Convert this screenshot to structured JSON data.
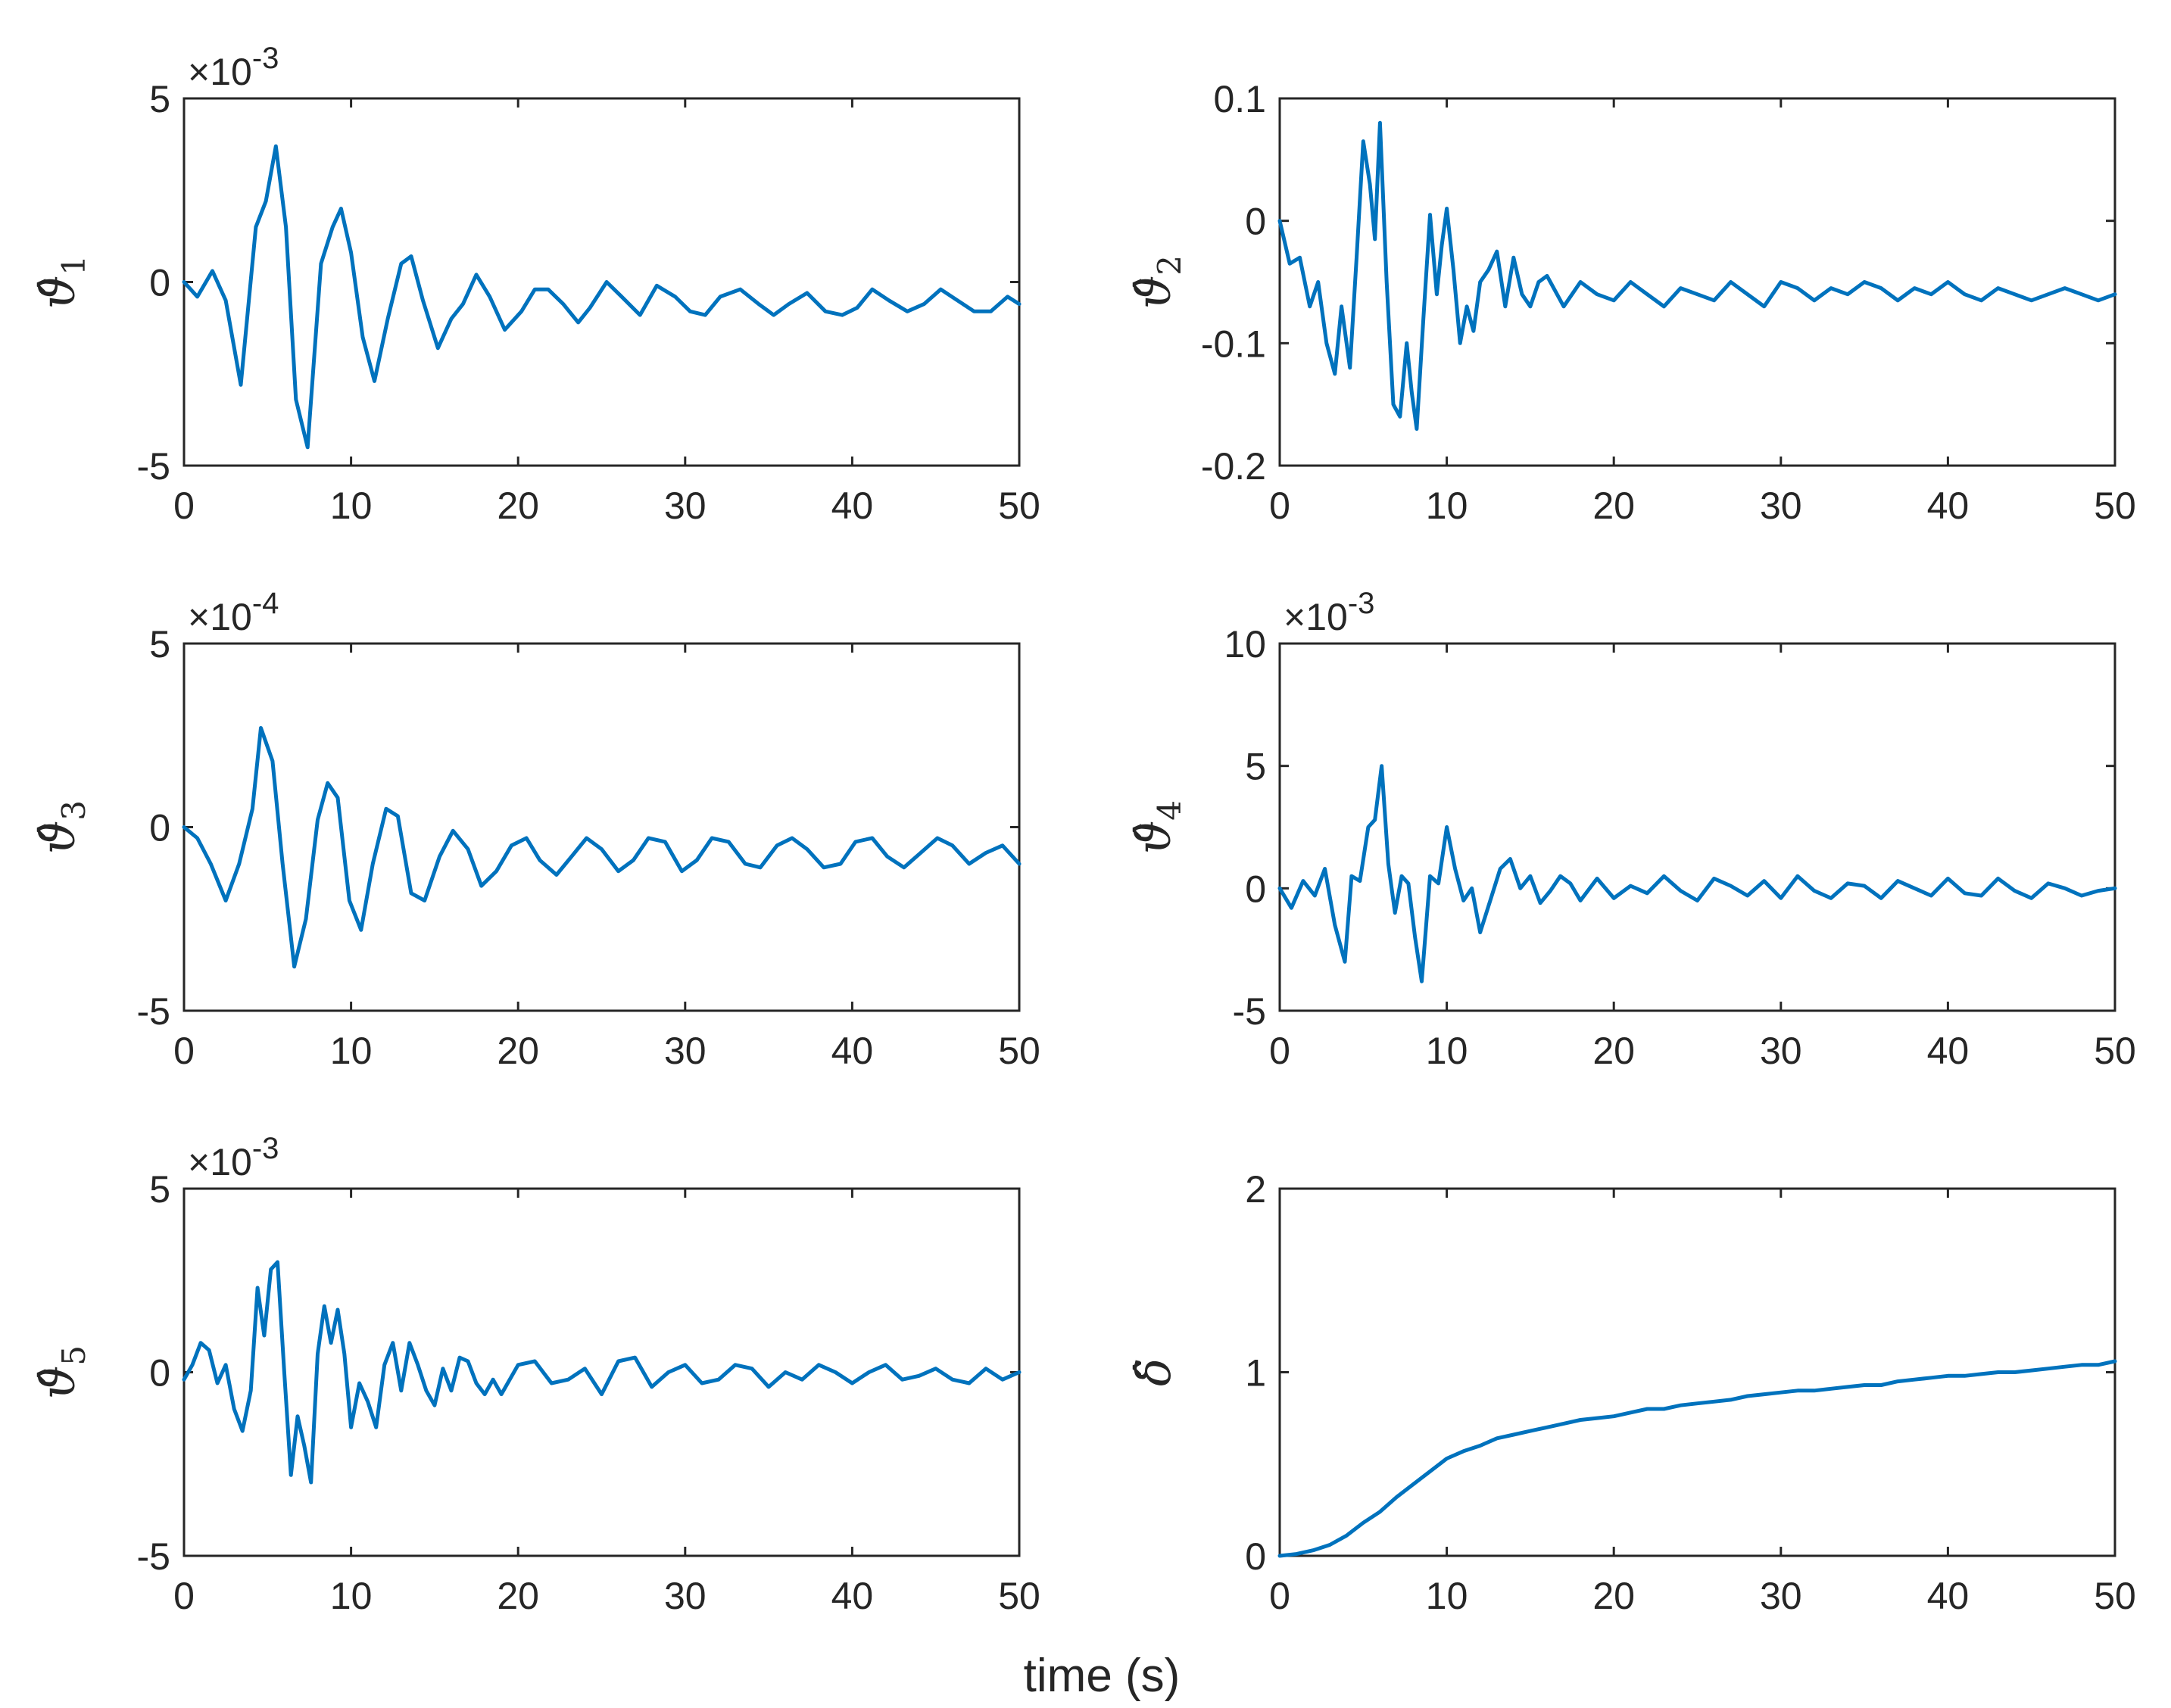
{
  "chart_data": [
    {
      "type": "line",
      "ylabel": "ϑ̂",
      "ylabel_sub": "1",
      "xlim": [
        0,
        50
      ],
      "ylim": [
        -5,
        5
      ],
      "xticks": [
        "0",
        "10",
        "20",
        "30",
        "40",
        "50"
      ],
      "yticks": [
        "5",
        "0",
        "-5"
      ],
      "ytick_values": [
        5,
        0,
        -5
      ],
      "exponent_label": "×10^-3",
      "series": [
        {
          "name": "theta1_hat",
          "color": "#0072bd",
          "x": [
            0,
            0.8,
            1.7,
            2.5,
            3.4,
            4.3,
            4.9,
            5.5,
            6.1,
            6.7,
            7.4,
            8.2,
            8.9,
            9.4,
            10.0,
            10.7,
            11.4,
            12.2,
            13.0,
            13.6,
            14.3,
            15.2,
            16.0,
            16.7,
            17.5,
            18.3,
            19.2,
            20.2,
            21.0,
            21.8,
            22.7,
            23.6,
            24.3,
            25.3,
            26.2,
            27.3,
            28.3,
            29.4,
            30.3,
            31.2,
            32.1,
            33.3,
            34.4,
            35.3,
            36.2,
            37.3,
            38.4,
            39.4,
            40.3,
            41.2,
            42.2,
            43.3,
            44.3,
            45.3,
            46.3,
            47.3,
            48.3,
            49.3,
            50
          ],
          "y": [
            0,
            -0.4,
            0.3,
            -0.5,
            -2.8,
            1.5,
            2.2,
            3.7,
            1.5,
            -3.2,
            -4.5,
            0.5,
            1.5,
            2.0,
            0.8,
            -1.5,
            -2.7,
            -1.0,
            0.5,
            0.7,
            -0.5,
            -1.8,
            -1.0,
            -0.6,
            0.2,
            -0.4,
            -1.3,
            -0.8,
            -0.2,
            -0.2,
            -0.6,
            -1.1,
            -0.7,
            0.0,
            -0.4,
            -0.9,
            -0.1,
            -0.4,
            -0.8,
            -0.9,
            -0.4,
            -0.2,
            -0.6,
            -0.9,
            -0.6,
            -0.3,
            -0.8,
            -0.9,
            -0.7,
            -0.2,
            -0.5,
            -0.8,
            -0.6,
            -0.2,
            -0.5,
            -0.8,
            -0.8,
            -0.4,
            -0.6
          ]
        }
      ]
    },
    {
      "type": "line",
      "ylabel": "ϑ̂",
      "ylabel_sub": "2",
      "xlim": [
        0,
        50
      ],
      "ylim": [
        -0.2,
        0.1
      ],
      "xticks": [
        "0",
        "10",
        "20",
        "30",
        "40",
        "50"
      ],
      "yticks": [
        "0.1",
        "0",
        "-0.1",
        "-0.2"
      ],
      "ytick_values": [
        0.1,
        0,
        -0.1,
        -0.2
      ],
      "exponent_label": "",
      "series": [
        {
          "name": "theta2_hat",
          "color": "#0072bd",
          "x": [
            0,
            0.6,
            1.2,
            1.8,
            2.3,
            2.8,
            3.3,
            3.7,
            4.2,
            4.6,
            5.0,
            5.4,
            5.7,
            6.0,
            6.4,
            6.8,
            7.2,
            7.6,
            7.9,
            8.2,
            8.6,
            9.0,
            9.4,
            9.7,
            10.0,
            10.4,
            10.8,
            11.2,
            11.6,
            12.0,
            12.5,
            13.0,
            13.5,
            14.0,
            14.5,
            15.0,
            15.5,
            16.0,
            17.0,
            18.0,
            19.0,
            20.0,
            21.0,
            22.0,
            23.0,
            24.0,
            25.0,
            26.0,
            27.0,
            28.0,
            29.0,
            30.0,
            31.0,
            32.0,
            33.0,
            34.0,
            35.0,
            36.0,
            37.0,
            38.0,
            39.0,
            40.0,
            41.0,
            42.0,
            43.0,
            44.0,
            45.0,
            46.0,
            47.0,
            48.0,
            49.0,
            50.0
          ],
          "y": [
            0,
            -0.035,
            -0.03,
            -0.07,
            -0.05,
            -0.1,
            -0.125,
            -0.07,
            -0.12,
            -0.03,
            0.065,
            0.03,
            -0.015,
            0.08,
            -0.05,
            -0.15,
            -0.16,
            -0.1,
            -0.14,
            -0.17,
            -0.08,
            0.005,
            -0.06,
            -0.02,
            0.01,
            -0.04,
            -0.1,
            -0.07,
            -0.09,
            -0.05,
            -0.04,
            -0.025,
            -0.07,
            -0.03,
            -0.06,
            -0.07,
            -0.05,
            -0.045,
            -0.07,
            -0.05,
            -0.06,
            -0.065,
            -0.05,
            -0.06,
            -0.07,
            -0.055,
            -0.06,
            -0.065,
            -0.05,
            -0.06,
            -0.07,
            -0.05,
            -0.055,
            -0.065,
            -0.055,
            -0.06,
            -0.05,
            -0.055,
            -0.065,
            -0.055,
            -0.06,
            -0.05,
            -0.06,
            -0.065,
            -0.055,
            -0.06,
            -0.065,
            -0.06,
            -0.055,
            -0.06,
            -0.065,
            -0.06
          ]
        }
      ]
    },
    {
      "type": "line",
      "ylabel": "ϑ̂",
      "ylabel_sub": "3",
      "xlim": [
        0,
        50
      ],
      "ylim": [
        -5,
        5
      ],
      "xticks": [
        "0",
        "10",
        "20",
        "30",
        "40",
        "50"
      ],
      "yticks": [
        "5",
        "0",
        "-5"
      ],
      "ytick_values": [
        5,
        0,
        -5
      ],
      "exponent_label": "×10^-4",
      "series": [
        {
          "name": "theta3_hat",
          "color": "#0072bd",
          "x": [
            0,
            0.8,
            1.6,
            2.5,
            3.3,
            4.1,
            4.6,
            5.3,
            5.9,
            6.6,
            7.3,
            8.0,
            8.6,
            9.2,
            9.9,
            10.6,
            11.3,
            12.1,
            12.8,
            13.6,
            14.4,
            15.3,
            16.1,
            17.0,
            17.8,
            18.7,
            19.6,
            20.5,
            21.3,
            22.3,
            23.2,
            24.1,
            25.0,
            26.0,
            26.9,
            27.8,
            28.8,
            29.8,
            30.7,
            31.6,
            32.6,
            33.6,
            34.5,
            35.5,
            36.4,
            37.3,
            38.3,
            39.3,
            40.2,
            41.2,
            42.1,
            43.1,
            44.1,
            45.1,
            46.0,
            47.0,
            48.0,
            49.0,
            50.0
          ],
          "y": [
            0,
            -0.3,
            -1.0,
            -2.0,
            -1.0,
            0.5,
            2.7,
            1.8,
            -1.0,
            -3.8,
            -2.5,
            0.2,
            1.2,
            0.8,
            -2.0,
            -2.8,
            -1.0,
            0.5,
            0.3,
            -1.8,
            -2.0,
            -0.8,
            -0.1,
            -0.6,
            -1.6,
            -1.2,
            -0.5,
            -0.3,
            -0.9,
            -1.3,
            -0.8,
            -0.3,
            -0.6,
            -1.2,
            -0.9,
            -0.3,
            -0.4,
            -1.2,
            -0.9,
            -0.3,
            -0.4,
            -1.0,
            -1.1,
            -0.5,
            -0.3,
            -0.6,
            -1.1,
            -1.0,
            -0.4,
            -0.3,
            -0.8,
            -1.1,
            -0.7,
            -0.3,
            -0.5,
            -1.0,
            -0.7,
            -0.5,
            -1.0
          ]
        }
      ]
    },
    {
      "type": "line",
      "ylabel": "ϑ̂",
      "ylabel_sub": "4",
      "xlim": [
        0,
        50
      ],
      "ylim": [
        -5,
        10
      ],
      "xticks": [
        "0",
        "10",
        "20",
        "30",
        "40",
        "50"
      ],
      "yticks": [
        "10",
        "5",
        "0",
        "-5"
      ],
      "ytick_values": [
        10,
        5,
        0,
        -5
      ],
      "exponent_label": "×10^-3",
      "series": [
        {
          "name": "theta4_hat",
          "color": "#0072bd",
          "x": [
            0,
            0.7,
            1.4,
            2.1,
            2.7,
            3.3,
            3.9,
            4.3,
            4.8,
            5.3,
            5.7,
            6.1,
            6.5,
            6.9,
            7.3,
            7.7,
            8.1,
            8.5,
            9.0,
            9.5,
            10.0,
            10.5,
            11.0,
            11.5,
            12.0,
            12.6,
            13.2,
            13.8,
            14.4,
            15.0,
            15.6,
            16.2,
            16.8,
            17.4,
            18.0,
            19.0,
            20.0,
            21.0,
            22.0,
            23.0,
            24.0,
            25.0,
            26.0,
            27.0,
            28.0,
            29.0,
            30.0,
            31.0,
            32.0,
            33.0,
            34.0,
            35.0,
            36.0,
            37.0,
            38.0,
            39.0,
            40.0,
            41.0,
            42.0,
            43.0,
            44.0,
            45.0,
            46.0,
            47.0,
            48.0,
            49.0,
            50.0
          ],
          "y": [
            0,
            -0.8,
            0.3,
            -0.3,
            0.8,
            -1.5,
            -3.0,
            0.5,
            0.3,
            2.5,
            2.8,
            5.0,
            1.0,
            -1.0,
            0.5,
            0.2,
            -2.0,
            -3.8,
            0.5,
            0.2,
            2.5,
            0.8,
            -0.5,
            0.0,
            -1.8,
            -0.5,
            0.8,
            1.2,
            0.0,
            0.5,
            -0.6,
            -0.1,
            0.5,
            0.2,
            -0.5,
            0.4,
            -0.4,
            0.1,
            -0.2,
            0.5,
            -0.1,
            -0.5,
            0.4,
            0.1,
            -0.3,
            0.3,
            -0.4,
            0.5,
            -0.1,
            -0.4,
            0.2,
            0.1,
            -0.4,
            0.3,
            0.0,
            -0.3,
            0.4,
            -0.2,
            -0.3,
            0.4,
            -0.1,
            -0.4,
            0.2,
            0.0,
            -0.3,
            -0.1,
            0.0
          ]
        }
      ]
    },
    {
      "type": "line",
      "ylabel": "ϑ̂",
      "ylabel_sub": "5",
      "xlim": [
        0,
        50
      ],
      "ylim": [
        -5,
        5
      ],
      "xticks": [
        "0",
        "10",
        "20",
        "30",
        "40",
        "50"
      ],
      "yticks": [
        "5",
        "0",
        "-5"
      ],
      "ytick_values": [
        5,
        0,
        -5
      ],
      "exponent_label": "×10^-3",
      "series": [
        {
          "name": "theta5_hat",
          "color": "#0072bd",
          "x": [
            0,
            0.5,
            1.0,
            1.5,
            2.0,
            2.5,
            3.0,
            3.5,
            4.0,
            4.4,
            4.8,
            5.2,
            5.6,
            6.0,
            6.4,
            6.8,
            7.2,
            7.6,
            8.0,
            8.4,
            8.8,
            9.2,
            9.6,
            10.0,
            10.5,
            11.0,
            11.5,
            12.0,
            12.5,
            13.0,
            13.5,
            14.0,
            14.5,
            15.0,
            15.5,
            16.0,
            16.5,
            17.0,
            17.5,
            18.0,
            18.5,
            19.0,
            20.0,
            21.0,
            22.0,
            23.0,
            24.0,
            25.0,
            26.0,
            27.0,
            28.0,
            29.0,
            30.0,
            31.0,
            32.0,
            33.0,
            34.0,
            35.0,
            36.0,
            37.0,
            38.0,
            39.0,
            40.0,
            41.0,
            42.0,
            43.0,
            44.0,
            45.0,
            46.0,
            47.0,
            48.0,
            49.0,
            50.0
          ],
          "y": [
            -0.2,
            0.2,
            0.8,
            0.6,
            -0.3,
            0.2,
            -1.0,
            -1.6,
            -0.5,
            2.3,
            1.0,
            2.8,
            3.0,
            0.0,
            -2.8,
            -1.2,
            -2.0,
            -3.0,
            0.5,
            1.8,
            0.8,
            1.7,
            0.5,
            -1.5,
            -0.3,
            -0.8,
            -1.5,
            0.2,
            0.8,
            -0.5,
            0.8,
            0.2,
            -0.5,
            -0.9,
            0.1,
            -0.5,
            0.4,
            0.3,
            -0.3,
            -0.6,
            -0.2,
            -0.6,
            0.2,
            0.3,
            -0.3,
            -0.2,
            0.1,
            -0.6,
            0.3,
            0.4,
            -0.4,
            0.0,
            0.2,
            -0.3,
            -0.2,
            0.2,
            0.1,
            -0.4,
            0.0,
            -0.2,
            0.2,
            0.0,
            -0.3,
            0.0,
            0.2,
            -0.2,
            -0.1,
            0.1,
            -0.2,
            -0.3,
            0.1,
            -0.2,
            0.0
          ]
        }
      ]
    },
    {
      "type": "line",
      "ylabel": "δ̂",
      "ylabel_sub": "",
      "xlim": [
        0,
        50
      ],
      "ylim": [
        0,
        2
      ],
      "xticks": [
        "0",
        "10",
        "20",
        "30",
        "40",
        "50"
      ],
      "yticks": [
        "2",
        "1",
        "0"
      ],
      "ytick_values": [
        2,
        1,
        0
      ],
      "exponent_label": "",
      "series": [
        {
          "name": "delta_hat",
          "color": "#0072bd",
          "x": [
            0,
            1,
            2,
            3,
            4,
            5,
            6,
            7,
            8,
            9,
            10,
            11,
            12,
            13,
            14,
            15,
            16,
            17,
            18,
            19,
            20,
            21,
            22,
            23,
            24,
            25,
            26,
            27,
            28,
            29,
            30,
            31,
            32,
            33,
            34,
            35,
            36,
            37,
            38,
            39,
            40,
            41,
            42,
            43,
            44,
            45,
            46,
            47,
            48,
            49,
            50
          ],
          "y": [
            0.0,
            0.01,
            0.03,
            0.06,
            0.11,
            0.18,
            0.24,
            0.32,
            0.39,
            0.46,
            0.53,
            0.57,
            0.6,
            0.64,
            0.66,
            0.68,
            0.7,
            0.72,
            0.74,
            0.75,
            0.76,
            0.78,
            0.8,
            0.8,
            0.82,
            0.83,
            0.84,
            0.85,
            0.87,
            0.88,
            0.89,
            0.9,
            0.9,
            0.91,
            0.92,
            0.93,
            0.93,
            0.95,
            0.96,
            0.97,
            0.98,
            0.98,
            0.99,
            1.0,
            1.0,
            1.01,
            1.02,
            1.03,
            1.04,
            1.04,
            1.06
          ]
        }
      ]
    }
  ],
  "figure": {
    "xlabel": "time (s)"
  }
}
